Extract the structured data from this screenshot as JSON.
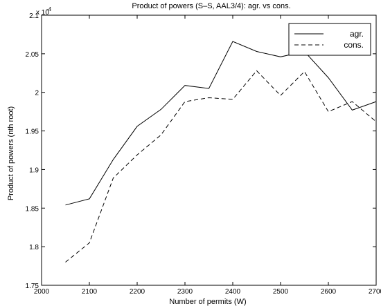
{
  "chart_data": {
    "type": "line",
    "title": "Product of powers (S–S, AAL3/4): agr. vs cons.",
    "xlabel": "Number of permits (W)",
    "ylabel": "Product of powers (nth root)",
    "y_multiplier": "x 10",
    "y_multiplier_exponent": "-4",
    "xlim": [
      2000,
      2700
    ],
    "ylim": [
      1.75,
      2.1
    ],
    "x_ticks": [
      "2000",
      "2100",
      "2200",
      "2300",
      "2400",
      "2500",
      "2600",
      "2700"
    ],
    "y_ticks": [
      "1.75",
      "1.8",
      "1.85",
      "1.9",
      "1.95",
      "2",
      "2.05",
      "2.1"
    ],
    "legend_position": "top-right",
    "grid": false,
    "series": [
      {
        "name": "agr.",
        "style": "solid",
        "x": [
          2050,
          2100,
          2150,
          2200,
          2250,
          2300,
          2350,
          2400,
          2450,
          2500,
          2550,
          2600,
          2650,
          2700
        ],
        "y": [
          1.854,
          1.862,
          1.913,
          1.956,
          1.978,
          2.009,
          2.005,
          2.066,
          2.053,
          2.046,
          2.053,
          2.019,
          1.977,
          1.988
        ]
      },
      {
        "name": "cons.",
        "style": "dashed",
        "x": [
          2050,
          2100,
          2150,
          2200,
          2250,
          2300,
          2350,
          2400,
          2450,
          2500,
          2550,
          2600,
          2650,
          2700
        ],
        "y": [
          1.78,
          1.805,
          1.889,
          1.919,
          1.945,
          1.988,
          1.993,
          1.991,
          2.028,
          1.996,
          2.027,
          1.975,
          1.988,
          1.962
        ]
      }
    ]
  }
}
